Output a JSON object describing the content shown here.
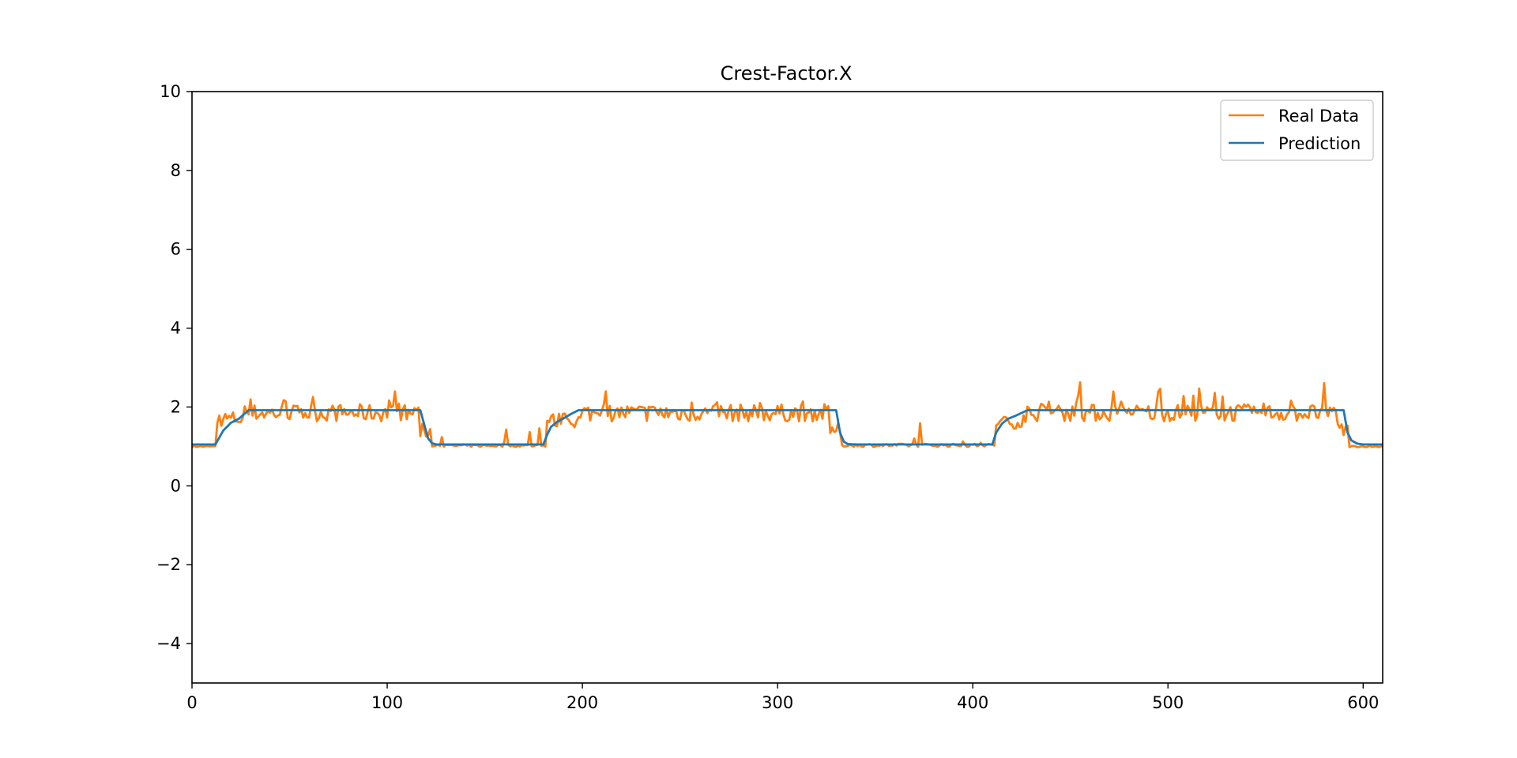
{
  "colors": {
    "real": "#ff7f0e",
    "prediction": "#1f77b4",
    "axis": "#000000",
    "legend_border": "#cccccc"
  },
  "chart_data": {
    "type": "line",
    "title": "Crest-Factor.X",
    "xlabel": "",
    "ylabel": "",
    "xlim": [
      0,
      610
    ],
    "ylim": [
      -5,
      10
    ],
    "xticks": [
      0,
      100,
      200,
      300,
      400,
      500,
      600
    ],
    "yticks": [
      -4,
      -2,
      0,
      2,
      4,
      6,
      8,
      10
    ],
    "ytick_labels": [
      "−4",
      "−2",
      "0",
      "2",
      "4",
      "6",
      "8",
      "10"
    ],
    "grid": false,
    "legend_position": "upper right",
    "series": [
      {
        "name": "Real Data",
        "color": "#ff7f0e",
        "segments": [
          {
            "start": 0,
            "end": 13,
            "mean": 1.0,
            "noise": 0.02,
            "peak_prob": 0,
            "peak_size": 0
          },
          {
            "start": 13,
            "end": 28,
            "mean": 1.7,
            "noise": 0.2,
            "peak_prob": 0.12,
            "peak_size": 0.6
          },
          {
            "start": 28,
            "end": 117,
            "mean": 1.85,
            "noise": 0.22,
            "peak_prob": 0.1,
            "peak_size": 0.45
          },
          {
            "start": 117,
            "end": 123,
            "mean": 1.4,
            "noise": 0.2,
            "peak_prob": 0,
            "peak_size": 0
          },
          {
            "start": 123,
            "end": 182,
            "mean": 1.02,
            "noise": 0.03,
            "peak_prob": 0.06,
            "peak_size": 0.6
          },
          {
            "start": 182,
            "end": 200,
            "mean": 1.65,
            "noise": 0.2,
            "peak_prob": 0.1,
            "peak_size": 0.4
          },
          {
            "start": 200,
            "end": 327,
            "mean": 1.85,
            "noise": 0.22,
            "peak_prob": 0.1,
            "peak_size": 0.5
          },
          {
            "start": 327,
            "end": 333,
            "mean": 1.4,
            "noise": 0.2,
            "peak_prob": 0,
            "peak_size": 0
          },
          {
            "start": 333,
            "end": 412,
            "mean": 1.03,
            "noise": 0.04,
            "peak_prob": 0.05,
            "peak_size": 0.55
          },
          {
            "start": 412,
            "end": 428,
            "mean": 1.6,
            "noise": 0.15,
            "peak_prob": 0.1,
            "peak_size": 0.4
          },
          {
            "start": 428,
            "end": 587,
            "mean": 1.85,
            "noise": 0.22,
            "peak_prob": 0.1,
            "peak_size": 0.65
          },
          {
            "start": 587,
            "end": 593,
            "mean": 1.4,
            "noise": 0.2,
            "peak_prob": 0,
            "peak_size": 0
          },
          {
            "start": 593,
            "end": 610,
            "mean": 1.0,
            "noise": 0.02,
            "peak_prob": 0,
            "peak_size": 0
          }
        ]
      },
      {
        "name": "Prediction",
        "color": "#1f77b4",
        "x": [
          0,
          12,
          16,
          20,
          24,
          29,
          117,
          119,
          121,
          123,
          125,
          130,
          180,
          182,
          184,
          187,
          190,
          194,
          198,
          330,
          332,
          334,
          336,
          340,
          410,
          412,
          415,
          418,
          422,
          428,
          590,
          592,
          594,
          597,
          600,
          610
        ],
        "y": [
          1.05,
          1.05,
          1.4,
          1.6,
          1.7,
          1.92,
          1.92,
          1.55,
          1.2,
          1.08,
          1.05,
          1.05,
          1.05,
          1.3,
          1.5,
          1.62,
          1.7,
          1.82,
          1.92,
          1.92,
          1.35,
          1.12,
          1.06,
          1.05,
          1.05,
          1.35,
          1.58,
          1.7,
          1.78,
          1.92,
          1.92,
          1.35,
          1.15,
          1.07,
          1.05,
          1.05
        ]
      }
    ]
  }
}
